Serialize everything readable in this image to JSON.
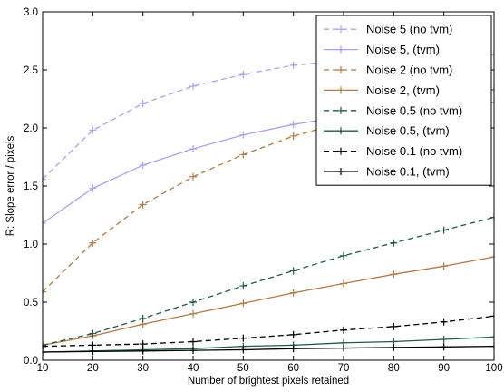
{
  "chart_data": {
    "type": "line",
    "title": "",
    "xlabel": "Number of brightest pixels retained",
    "ylabel": "R: Slope error / pixels",
    "xlim": [
      10,
      100
    ],
    "ylim": [
      0.0,
      3.0
    ],
    "xticks": [
      10,
      20,
      30,
      40,
      50,
      60,
      70,
      80,
      90,
      100
    ],
    "xtick_labels": [
      "10",
      "20",
      "30",
      "40",
      "50",
      "60",
      "70",
      "80",
      "90",
      "100"
    ],
    "yticks": [
      0.0,
      0.5,
      1.0,
      1.5,
      2.0,
      2.5,
      3.0
    ],
    "ytick_labels": [
      "0.0",
      "0.5",
      "1.0",
      "1.5",
      "2.0",
      "2.5",
      "3.0"
    ],
    "grid": false,
    "legend_position": "top-right",
    "x": [
      10,
      20,
      30,
      40,
      50,
      60,
      70,
      80,
      90,
      100
    ],
    "series": [
      {
        "name": "Noise 5 (no tvm)",
        "color": "#a9a2f2",
        "dash": true,
        "marker": "+",
        "values": [
          1.56,
          1.98,
          2.21,
          2.36,
          2.46,
          2.54,
          2.58,
          2.61,
          2.62,
          2.63
        ]
      },
      {
        "name": "Noise 5, (tvm)",
        "color": "#a9a2f2",
        "dash": false,
        "marker": "+",
        "values": [
          1.18,
          1.48,
          1.68,
          1.82,
          1.94,
          2.03,
          2.1,
          2.15,
          2.19,
          2.22
        ]
      },
      {
        "name": "Noise 2 (no tvm)",
        "color": "#b57a42",
        "dash": true,
        "marker": "+",
        "values": [
          0.59,
          1.01,
          1.34,
          1.58,
          1.77,
          1.93,
          2.05,
          2.16,
          2.25,
          2.33
        ]
      },
      {
        "name": "Noise 2, (tvm)",
        "color": "#b57a42",
        "dash": false,
        "marker": "+",
        "values": [
          0.13,
          0.21,
          0.31,
          0.4,
          0.49,
          0.58,
          0.66,
          0.74,
          0.81,
          0.89
        ]
      },
      {
        "name": "Noise 0.5 (no tvm)",
        "color": "#1f5a46",
        "dash": true,
        "marker": "+",
        "values": [
          0.13,
          0.23,
          0.36,
          0.5,
          0.64,
          0.77,
          0.9,
          1.01,
          1.12,
          1.23
        ]
      },
      {
        "name": "Noise 0.5, (tvm)",
        "color": "#1f5a46",
        "dash": false,
        "marker": "+",
        "values": [
          0.07,
          0.08,
          0.09,
          0.1,
          0.12,
          0.13,
          0.15,
          0.16,
          0.18,
          0.2
        ]
      },
      {
        "name": "Noise 0.1 (no tvm)",
        "color": "#000000",
        "dash": true,
        "marker": "+",
        "values": [
          0.12,
          0.13,
          0.14,
          0.16,
          0.19,
          0.22,
          0.26,
          0.29,
          0.33,
          0.38
        ]
      },
      {
        "name": "Noise 0.1, (tvm)",
        "color": "#000000",
        "dash": false,
        "marker": "+",
        "values": [
          0.07,
          0.075,
          0.08,
          0.085,
          0.09,
          0.1,
          0.105,
          0.11,
          0.115,
          0.12
        ]
      }
    ]
  }
}
